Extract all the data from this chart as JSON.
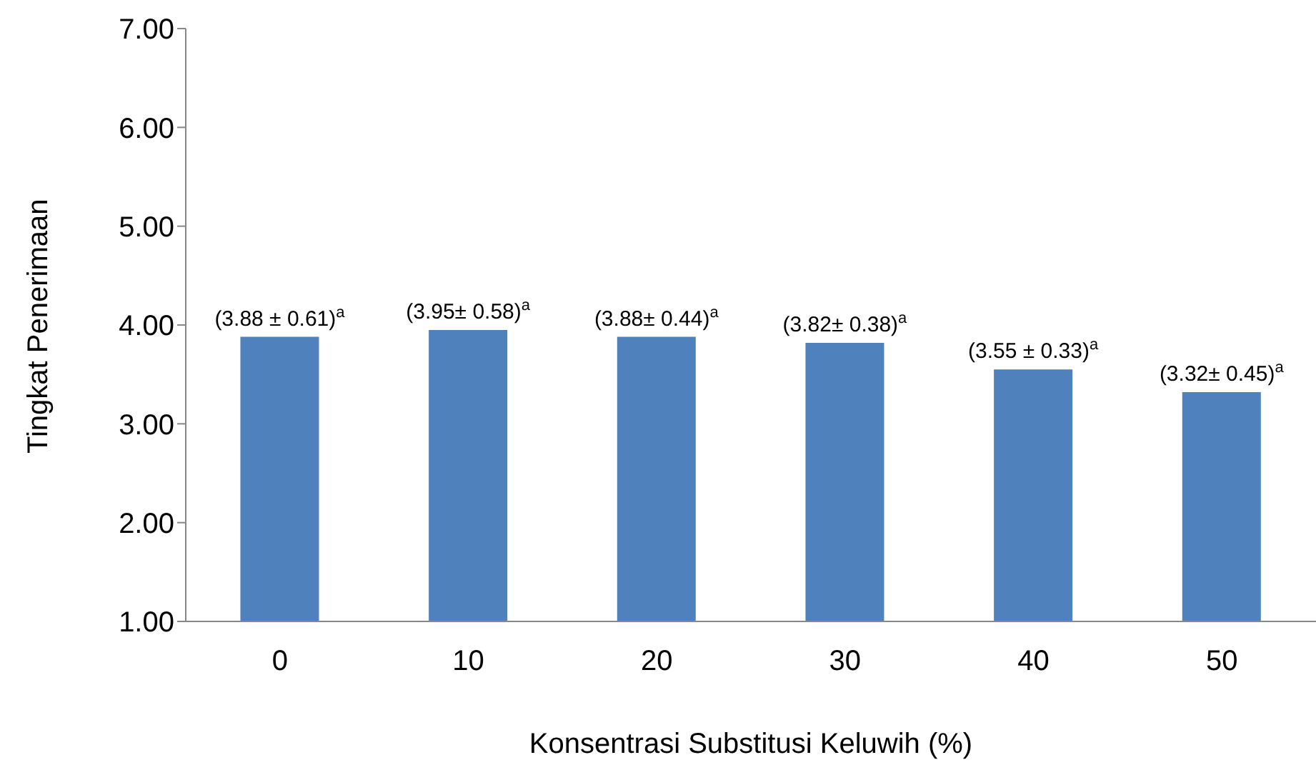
{
  "chart_data": {
    "type": "bar",
    "xlabel": "Konsentrasi Substitusi Keluwih (%)",
    "ylabel": "Tingkat Penerimaan",
    "categories": [
      "0",
      "10",
      "20",
      "30",
      "40",
      "50"
    ],
    "values": [
      3.88,
      3.95,
      3.88,
      3.82,
      3.55,
      3.32
    ],
    "value_labels": [
      "(3.88 ± 0.61)$^{a}$",
      "(3.95±  0.58)$^{a}$",
      "(3.88± 0.44)$^{a}$",
      "(3.82±  0.38)$^{a}$",
      "(3.55 ±  0.33)$^{a}$",
      "(3.32±  0.45)$^{a}$"
    ],
    "color": "#4f81bd",
    "ylim": [
      1,
      7
    ],
    "yticks": [
      {
        "value": 1,
        "label": "1.00"
      },
      {
        "value": 2,
        "label": "2.00"
      },
      {
        "value": 3,
        "label": "3.00"
      },
      {
        "value": 4,
        "label": "4.00"
      },
      {
        "value": 5,
        "label": "5.00"
      },
      {
        "value": 6,
        "label": "6.00"
      },
      {
        "value": 7,
        "label": "7.00"
      }
    ],
    "grid": false,
    "legend": false
  }
}
